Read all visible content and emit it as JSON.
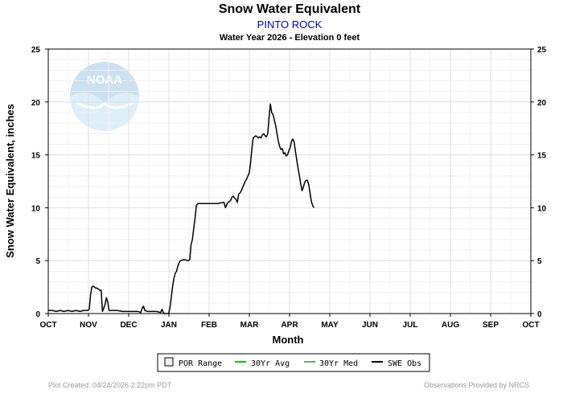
{
  "chart_data": {
    "type": "line",
    "title": "Snow Water Equivalent",
    "station": "PINTO ROCK",
    "subtitle": "Water Year 2026 -  Elevation 0 feet",
    "xlabel": "Month",
    "ylabel": "Snow Water Equivalent, inches",
    "ylim": [
      0,
      25
    ],
    "yticks": [
      0,
      5,
      10,
      15,
      20,
      25
    ],
    "categories": [
      "OCT",
      "NOV",
      "DEC",
      "JAN",
      "FEB",
      "MAR",
      "APR",
      "MAY",
      "JUN",
      "JUL",
      "AUG",
      "SEP",
      "OCT"
    ],
    "series": [
      {
        "name": "SWE Obs",
        "color": "#000000",
        "points": [
          [
            0,
            0.3
          ],
          [
            3,
            0.3
          ],
          [
            6,
            0.2
          ],
          [
            9,
            0.3
          ],
          [
            12,
            0.2
          ],
          [
            15,
            0.3
          ],
          [
            18,
            0.2
          ],
          [
            21,
            0.3
          ],
          [
            24,
            0.2
          ],
          [
            27,
            0.3
          ],
          [
            30,
            0.3
          ],
          [
            31,
            0.4
          ],
          [
            32,
            1.8
          ],
          [
            33,
            2.5
          ],
          [
            34,
            2.6
          ],
          [
            35,
            2.5
          ],
          [
            36,
            2.4
          ],
          [
            37,
            2.4
          ],
          [
            38,
            2.3
          ],
          [
            39,
            2.2
          ],
          [
            40,
            2.2
          ],
          [
            41,
            0.2
          ],
          [
            42,
            0.5
          ],
          [
            43,
            0.9
          ],
          [
            44,
            1.5
          ],
          [
            45,
            1.1
          ],
          [
            46,
            0.3
          ],
          [
            48,
            0.3
          ],
          [
            52,
            0.3
          ],
          [
            56,
            0.2
          ],
          [
            60,
            0.2
          ],
          [
            64,
            0.2
          ],
          [
            68,
            0.2
          ],
          [
            70,
            0.1
          ],
          [
            71,
            0.5
          ],
          [
            72,
            0.7
          ],
          [
            73,
            0.3
          ],
          [
            75,
            0.2
          ],
          [
            78,
            0.2
          ],
          [
            82,
            0.2
          ],
          [
            85,
            0.1
          ],
          [
            86,
            0.4
          ],
          [
            87,
            0.1
          ],
          [
            88,
            0.0
          ],
          [
            91,
            0.0
          ],
          [
            92,
            0.5
          ],
          [
            93,
            1.5
          ],
          [
            94,
            2.5
          ],
          [
            95,
            3.3
          ],
          [
            96,
            3.8
          ],
          [
            97,
            4.0
          ],
          [
            98,
            4.5
          ],
          [
            99,
            4.8
          ],
          [
            100,
            5.0
          ],
          [
            103,
            5.1
          ],
          [
            106,
            5.0
          ],
          [
            107,
            5.1
          ],
          [
            108,
            6.5
          ],
          [
            109,
            7.0
          ],
          [
            110,
            8.0
          ],
          [
            111,
            9.0
          ],
          [
            112,
            10.2
          ],
          [
            113,
            10.4
          ],
          [
            116,
            10.4
          ],
          [
            120,
            10.4
          ],
          [
            124,
            10.4
          ],
          [
            128,
            10.4
          ],
          [
            132,
            10.5
          ],
          [
            133,
            10.5
          ],
          [
            134,
            10.0
          ],
          [
            135,
            10.3
          ],
          [
            136,
            10.5
          ],
          [
            137,
            10.6
          ],
          [
            138,
            10.7
          ],
          [
            139,
            11.0
          ],
          [
            140,
            11.1
          ],
          [
            141,
            10.9
          ],
          [
            142,
            10.8
          ],
          [
            143,
            10.5
          ],
          [
            144,
            11.3
          ],
          [
            145,
            11.4
          ],
          [
            146,
            11.6
          ],
          [
            147,
            11.9
          ],
          [
            148,
            12.2
          ],
          [
            149,
            12.5
          ],
          [
            150,
            12.7
          ],
          [
            151,
            13.0
          ],
          [
            152,
            13.3
          ],
          [
            153,
            14.2
          ],
          [
            154,
            15.6
          ],
          [
            155,
            16.6
          ],
          [
            156,
            16.7
          ],
          [
            157,
            16.8
          ],
          [
            158,
            16.7
          ],
          [
            159,
            16.6
          ],
          [
            160,
            16.7
          ],
          [
            161,
            16.6
          ],
          [
            162,
            16.9
          ],
          [
            163,
            17.0
          ],
          [
            164,
            16.8
          ],
          [
            165,
            16.7
          ],
          [
            166,
            17.0
          ],
          [
            167,
            18.5
          ],
          [
            168,
            19.8
          ],
          [
            169,
            19.0
          ],
          [
            170,
            18.8
          ],
          [
            171,
            18.3
          ],
          [
            172,
            17.8
          ],
          [
            173,
            17.0
          ],
          [
            174,
            16.3
          ],
          [
            175,
            15.8
          ],
          [
            176,
            15.5
          ],
          [
            177,
            15.6
          ],
          [
            178,
            15.1
          ],
          [
            179,
            15.2
          ],
          [
            180,
            14.9
          ],
          [
            181,
            15.0
          ],
          [
            182,
            15.4
          ],
          [
            183,
            15.7
          ],
          [
            184,
            16.3
          ],
          [
            185,
            16.5
          ],
          [
            186,
            16.2
          ],
          [
            187,
            15.3
          ],
          [
            188,
            14.5
          ],
          [
            189,
            13.7
          ],
          [
            190,
            13.0
          ],
          [
            191,
            12.2
          ],
          [
            192,
            11.6
          ],
          [
            193,
            12.0
          ],
          [
            194,
            12.4
          ],
          [
            195,
            12.6
          ],
          [
            196,
            12.6
          ],
          [
            197,
            12.2
          ],
          [
            198,
            11.4
          ],
          [
            199,
            10.6
          ],
          [
            200,
            10.2
          ],
          [
            201,
            10.0
          ]
        ]
      }
    ],
    "legend": [
      {
        "label": "POR Range",
        "kind": "box",
        "color": "#000000"
      },
      {
        "label": "30Yr Avg",
        "kind": "line",
        "color": "#00cc00"
      },
      {
        "label": "30Yr Med",
        "kind": "line",
        "color": "#66aa66"
      },
      {
        "label": "SWE Obs",
        "kind": "line",
        "color": "#000000"
      }
    ],
    "legend_position": "bottom-center"
  },
  "footer": {
    "created": "Plot Created: 04/24/2026 2:22pm PDT",
    "provided": "Observations Provided by NRCS"
  },
  "watermark": {
    "text": "NOAA"
  }
}
